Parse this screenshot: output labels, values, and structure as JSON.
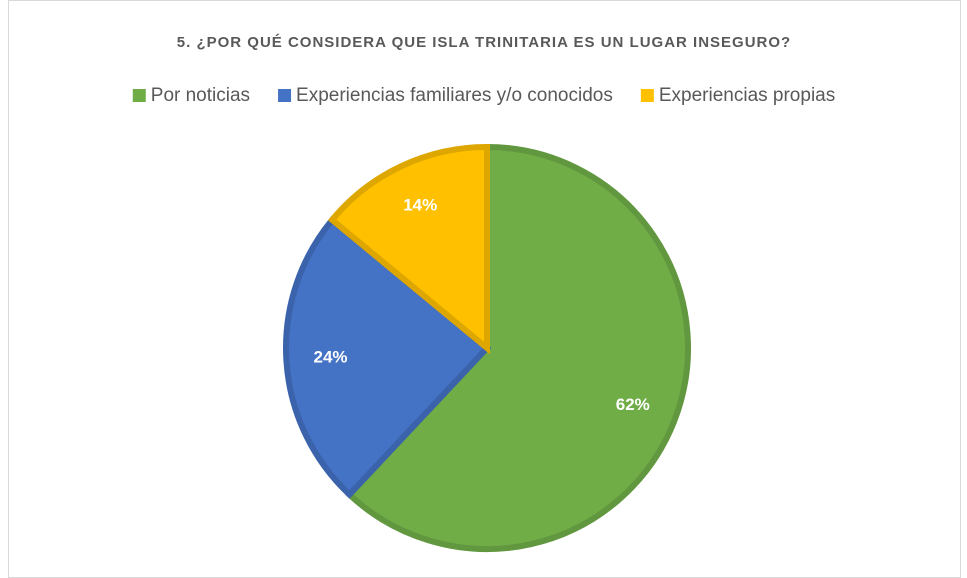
{
  "chart_data": {
    "type": "pie",
    "title": "5. ¿POR QUÉ CONSIDERA QUE ISLA TRINITARIA ES UN LUGAR INSEGURO?",
    "categories": [
      "Por noticias",
      "Experiencias familiares y/o conocidos",
      "Experiencias propias"
    ],
    "values": [
      62,
      24,
      14
    ],
    "value_labels": [
      "62%",
      "24%",
      "14%"
    ],
    "colors": [
      "#70ad47",
      "#4472c4",
      "#ffc000"
    ],
    "legend": "top"
  }
}
